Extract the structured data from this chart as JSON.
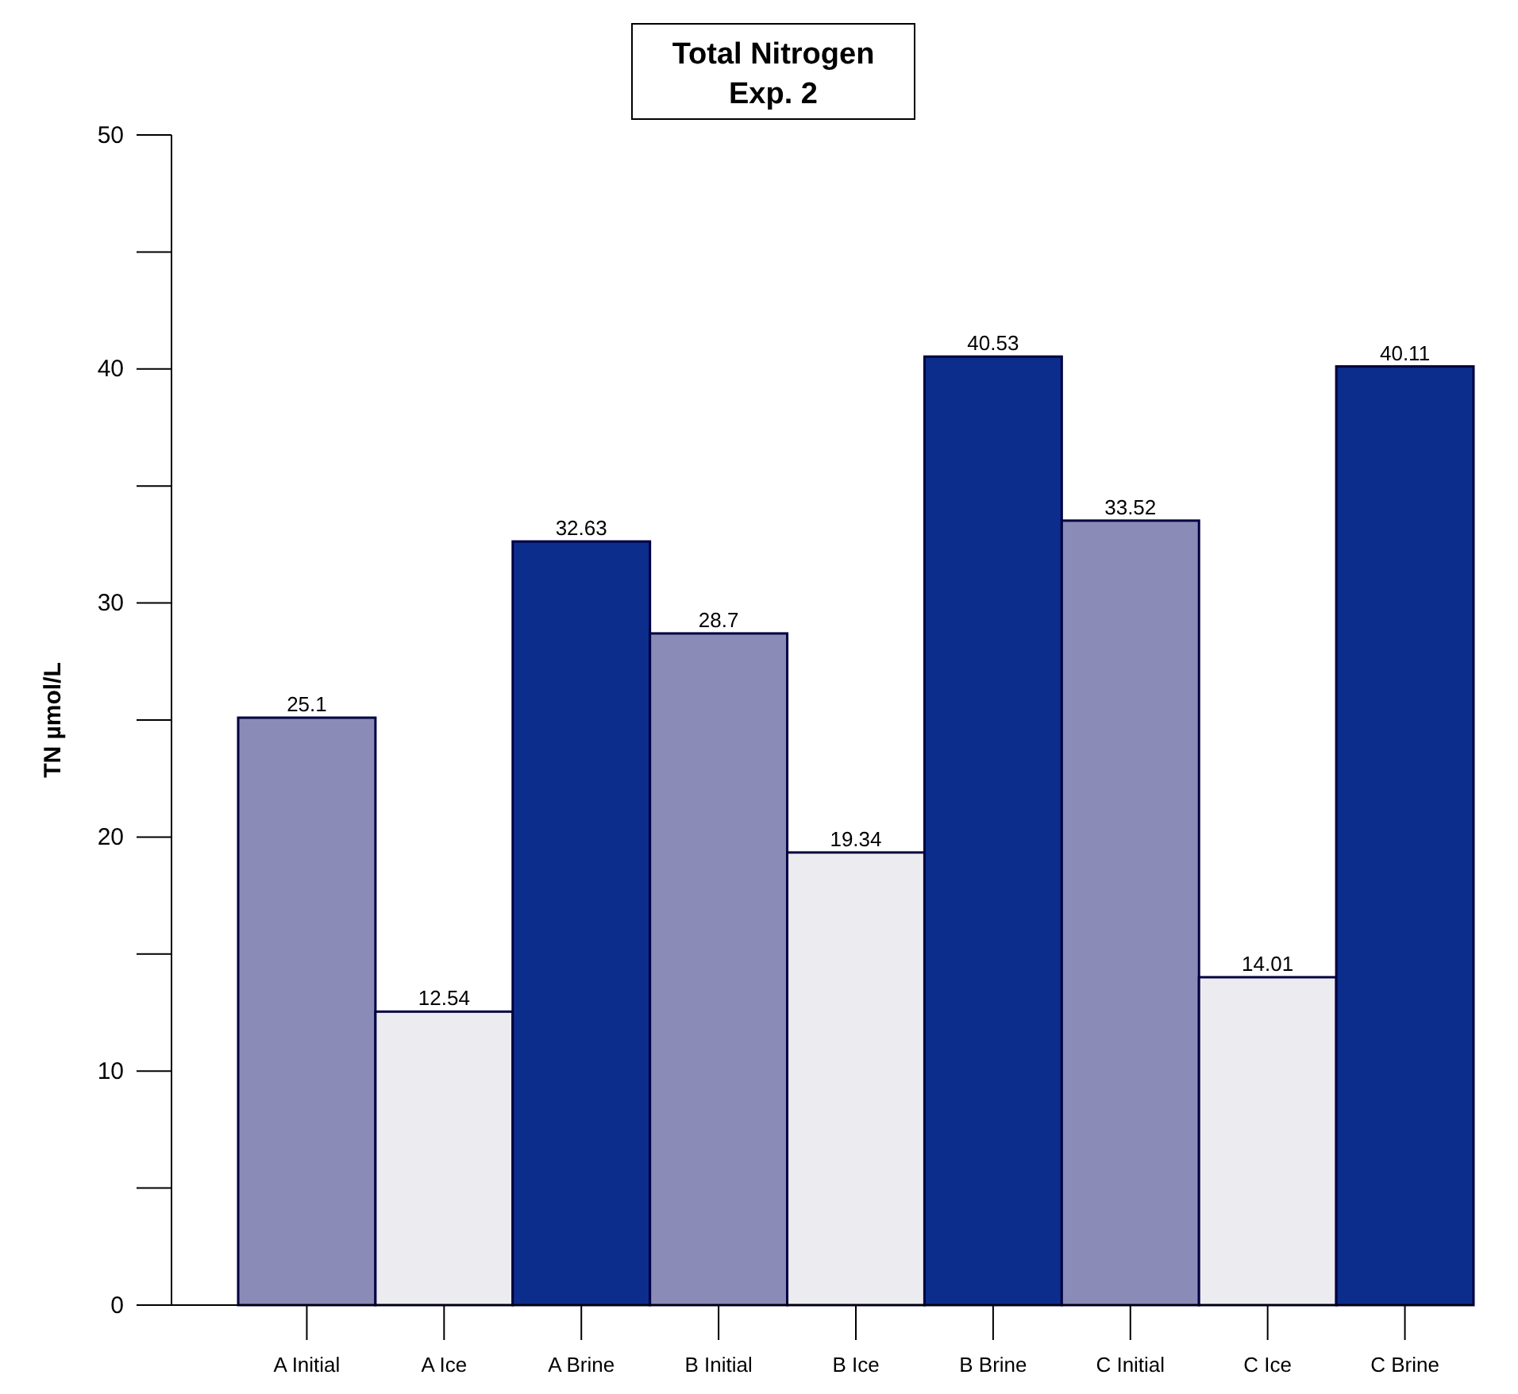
{
  "chart_data": {
    "type": "bar",
    "title": "Total Nitrogen",
    "subtitle": "Exp. 2",
    "ylabel": "TN µmol/L",
    "categories": [
      "A Initial",
      "A Ice",
      "A Brine",
      "B Initial",
      "B Ice",
      "B Brine",
      "C Initial",
      "C Ice",
      "C Brine"
    ],
    "values": [
      25.1,
      12.54,
      32.63,
      28.7,
      19.34,
      40.53,
      33.52,
      14.01,
      40.11
    ],
    "colors": [
      "#8b8bb8",
      "#ececf0",
      "#0c2d8c",
      "#8b8bb8",
      "#ececf0",
      "#0c2d8c",
      "#8b8bb8",
      "#ececf0",
      "#0c2d8c"
    ],
    "ylim": [
      0,
      50
    ],
    "yticks": [
      0,
      10,
      20,
      30,
      40,
      50
    ],
    "data_labels": true,
    "grid": false
  }
}
